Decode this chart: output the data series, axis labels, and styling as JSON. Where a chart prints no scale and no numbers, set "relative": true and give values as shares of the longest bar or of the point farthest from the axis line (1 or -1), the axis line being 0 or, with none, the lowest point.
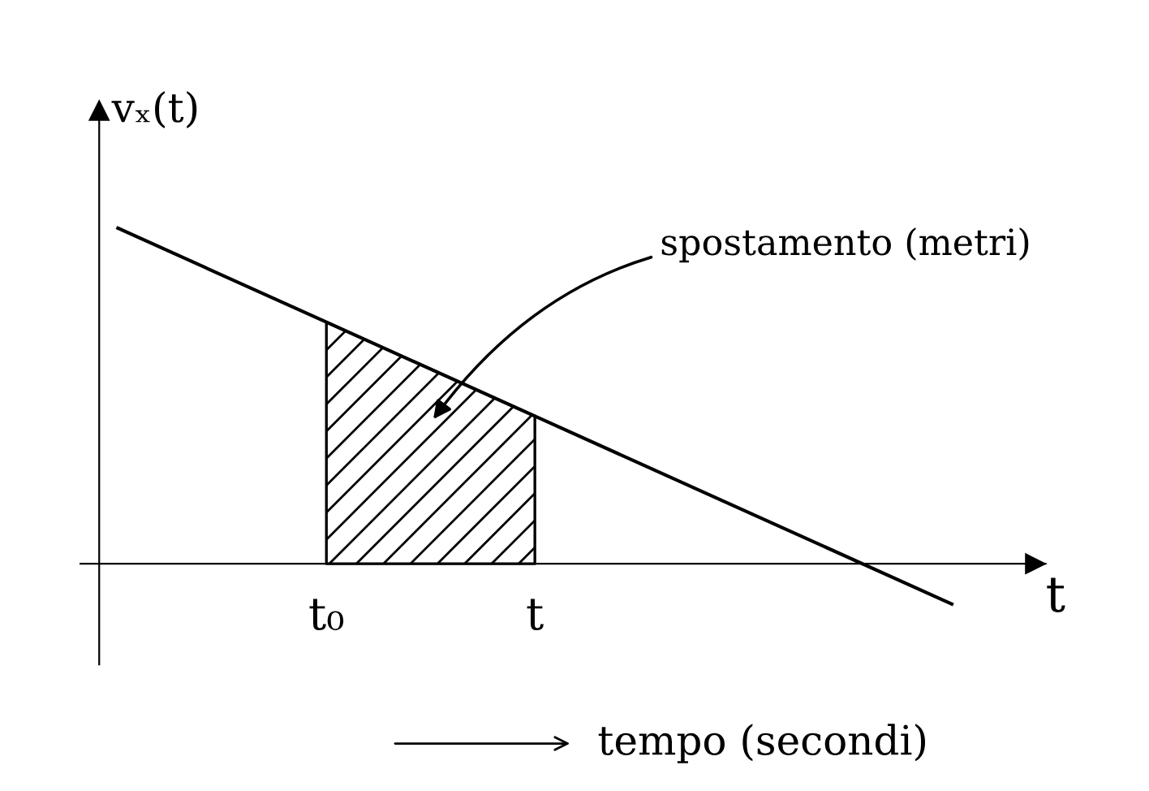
{
  "chart_data": {
    "type": "line",
    "relative": true,
    "ylabel": "vₓ(t)",
    "xlabel": "t",
    "categories": [
      null,
      "t₀",
      "t",
      null,
      null
    ],
    "series": [
      {
        "color": "#000000",
        "values": [
          1.0,
          0.72,
          0.44,
          0.16,
          -0.12
        ]
      },
      {
        "type": "area",
        "color": "#000000",
        "values": [
          null,
          0.72,
          0.44,
          null,
          null
        ]
      }
    ],
    "annotations": [
      "spostamento (metri)",
      "tempo (secondi)"
    ],
    "grid": false
  }
}
